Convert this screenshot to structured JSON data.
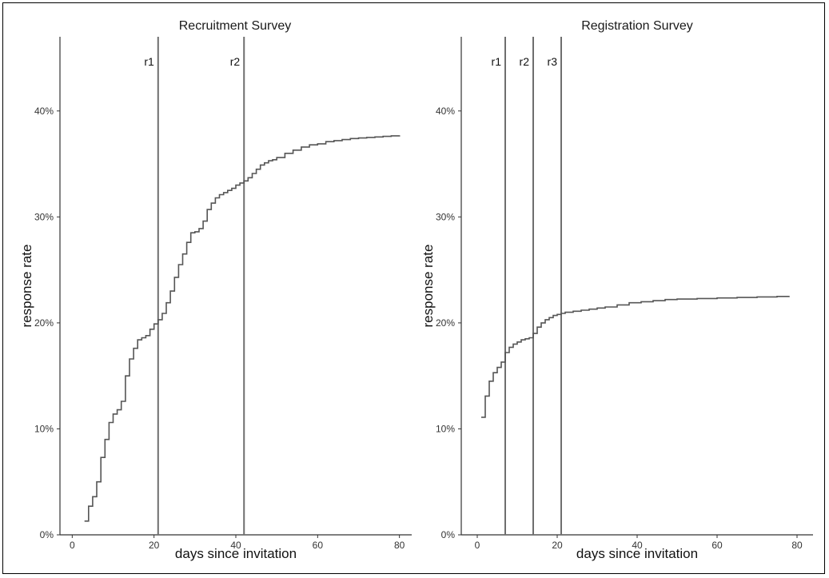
{
  "chart_data": [
    {
      "type": "line",
      "title": "Recruitment Survey",
      "xlabel": "days since invitation",
      "ylabel": "response rate",
      "xlim": [
        -3,
        83
      ],
      "ylim": [
        0,
        0.47
      ],
      "x_ticks": [
        0,
        20,
        40,
        60,
        80
      ],
      "x_tick_labels": [
        "0",
        "20",
        "40",
        "60",
        "80"
      ],
      "y_ticks": [
        0,
        0.1,
        0.2,
        0.3,
        0.4
      ],
      "y_tick_labels": [
        "0%",
        "10%",
        "20%",
        "30%",
        "40%"
      ],
      "grid": false,
      "step": true,
      "reminders": [
        {
          "label": "r1",
          "x": 21
        },
        {
          "label": "r2",
          "x": 42
        }
      ],
      "series": [
        {
          "x": [
            3,
            4,
            5,
            6,
            7,
            8,
            9,
            10,
            11,
            12,
            13,
            14,
            15,
            16,
            17,
            18,
            19,
            20,
            21,
            22,
            23,
            24,
            25,
            26,
            27,
            28,
            29,
            30,
            31,
            32,
            33,
            34,
            35,
            36,
            37,
            38,
            39,
            40,
            41,
            42,
            43,
            44,
            45,
            46,
            47,
            48,
            49,
            50,
            52,
            54,
            56,
            58,
            60,
            62,
            64,
            66,
            68,
            70,
            72,
            74,
            76,
            78,
            80
          ],
          "y": [
            0.013,
            0.027,
            0.036,
            0.05,
            0.073,
            0.09,
            0.106,
            0.114,
            0.118,
            0.126,
            0.15,
            0.166,
            0.176,
            0.184,
            0.186,
            0.188,
            0.194,
            0.199,
            0.203,
            0.209,
            0.219,
            0.23,
            0.243,
            0.255,
            0.265,
            0.276,
            0.285,
            0.286,
            0.289,
            0.296,
            0.307,
            0.313,
            0.318,
            0.321,
            0.323,
            0.325,
            0.327,
            0.33,
            0.332,
            0.334,
            0.337,
            0.341,
            0.345,
            0.349,
            0.351,
            0.353,
            0.354,
            0.356,
            0.36,
            0.363,
            0.366,
            0.368,
            0.369,
            0.371,
            0.372,
            0.373,
            0.374,
            0.3745,
            0.375,
            0.3755,
            0.376,
            0.3765,
            0.377
          ]
        }
      ]
    },
    {
      "type": "line",
      "title": "Registration Survey",
      "xlabel": "days since invitation",
      "ylabel": "response rate",
      "xlim": [
        -4,
        84
      ],
      "ylim": [
        0,
        0.47
      ],
      "x_ticks": [
        0,
        20,
        40,
        60,
        80
      ],
      "x_tick_labels": [
        "0",
        "20",
        "40",
        "60",
        "80"
      ],
      "y_ticks": [
        0,
        0.1,
        0.2,
        0.3,
        0.4
      ],
      "y_tick_labels": [
        "0%",
        "10%",
        "20%",
        "30%",
        "40%"
      ],
      "grid": false,
      "step": true,
      "reminders": [
        {
          "label": "r1",
          "x": 7
        },
        {
          "label": "r2",
          "x": 14
        },
        {
          "label": "r3",
          "x": 21
        }
      ],
      "series": [
        {
          "x": [
            1,
            2,
            3,
            4,
            5,
            6,
            7,
            8,
            9,
            10,
            11,
            12,
            13,
            14,
            15,
            16,
            17,
            18,
            19,
            20,
            21,
            22,
            24,
            26,
            28,
            30,
            32,
            35,
            38,
            41,
            44,
            47,
            50,
            55,
            60,
            65,
            70,
            75,
            78
          ],
          "y": [
            0.111,
            0.131,
            0.145,
            0.153,
            0.158,
            0.163,
            0.172,
            0.177,
            0.18,
            0.182,
            0.184,
            0.185,
            0.186,
            0.19,
            0.196,
            0.2,
            0.203,
            0.205,
            0.207,
            0.208,
            0.209,
            0.21,
            0.211,
            0.212,
            0.213,
            0.214,
            0.215,
            0.217,
            0.219,
            0.22,
            0.221,
            0.222,
            0.2225,
            0.223,
            0.2235,
            0.224,
            0.2245,
            0.225,
            0.2255
          ]
        }
      ]
    }
  ]
}
